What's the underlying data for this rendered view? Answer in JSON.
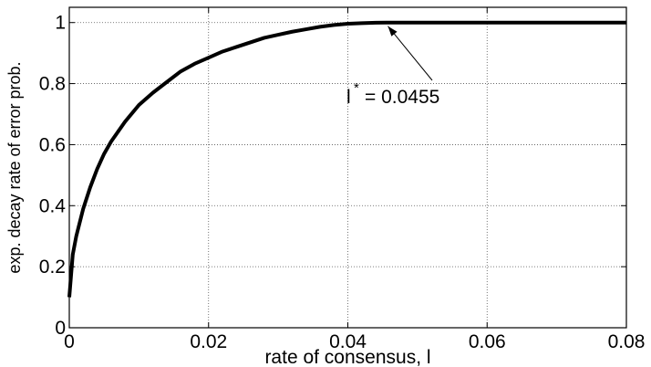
{
  "chart_data": {
    "type": "line",
    "title": "",
    "xlabel": "rate of consensus, l",
    "ylabel": "exp. decay rate of error prob.",
    "xlim": [
      0,
      0.08
    ],
    "ylim": [
      0,
      1.05
    ],
    "grid": true,
    "x_ticks": [
      0,
      0.02,
      0.04,
      0.06,
      0.08
    ],
    "x_tick_labels": [
      "0",
      "0.02",
      "0.04",
      "0.06",
      "0.08"
    ],
    "y_ticks": [
      0,
      0.2,
      0.4,
      0.6,
      0.8,
      1
    ],
    "y_tick_labels": [
      "0",
      "0.2",
      "0.4",
      "0.6",
      "0.8",
      "1"
    ],
    "series": [
      {
        "color": "#000000",
        "x": [
          0,
          0.0005,
          0.001,
          0.002,
          0.003,
          0.004,
          0.005,
          0.006,
          0.008,
          0.01,
          0.012,
          0.014,
          0.016,
          0.018,
          0.02,
          0.022,
          0.024,
          0.026,
          0.028,
          0.03,
          0.032,
          0.034,
          0.036,
          0.038,
          0.04,
          0.042,
          0.044,
          0.0455,
          0.05,
          0.06,
          0.07,
          0.08
        ],
        "y": [
          0.1,
          0.24,
          0.3,
          0.39,
          0.46,
          0.52,
          0.57,
          0.61,
          0.675,
          0.73,
          0.77,
          0.805,
          0.84,
          0.865,
          0.885,
          0.905,
          0.92,
          0.935,
          0.95,
          0.96,
          0.97,
          0.978,
          0.986,
          0.992,
          0.996,
          0.998,
          0.9995,
          1.0,
          1.0,
          1.0,
          1.0,
          1.0
        ]
      }
    ],
    "annotation": {
      "symbol": "l",
      "superscript": "*",
      "text": "= 0.0455",
      "point_x": 0.0455,
      "point_y": 1.0
    }
  }
}
